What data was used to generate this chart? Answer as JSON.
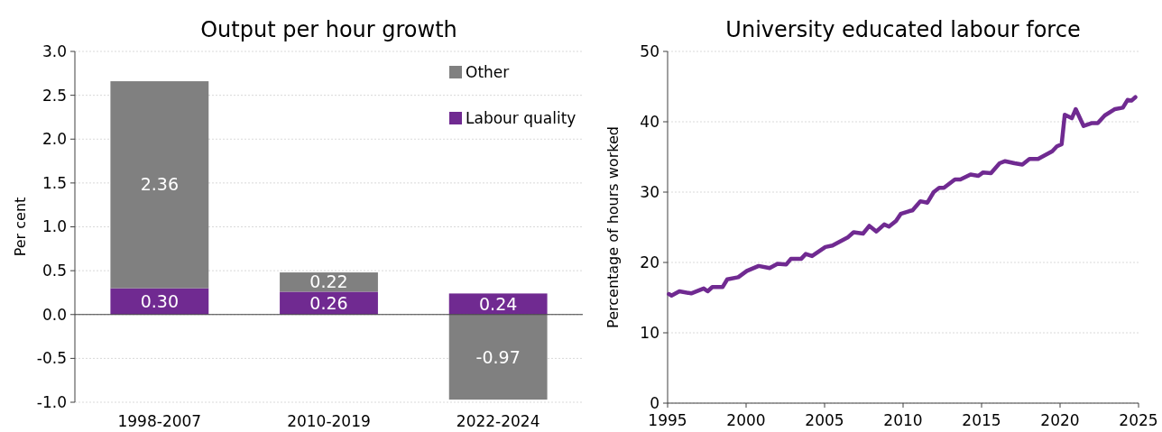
{
  "chart_data": [
    {
      "type": "bar",
      "title": "Output per hour growth",
      "ylabel": "Per cent",
      "categories": [
        "1998-2007",
        "2010-2019",
        "2022-2024"
      ],
      "stacked": true,
      "legend": "top right",
      "grid": "y",
      "ylim": [
        -1,
        3
      ],
      "yticks": [
        {
          "value": -1,
          "label": "-1.0"
        },
        {
          "value": -0.5,
          "label": "-0.5"
        },
        {
          "value": 0,
          "label": "0.0"
        },
        {
          "value": 0.5,
          "label": "0.5"
        },
        {
          "value": 1,
          "label": "1.0"
        },
        {
          "value": 1.5,
          "label": "1.5"
        },
        {
          "value": 2,
          "label": "2.0"
        },
        {
          "value": 2.5,
          "label": "2.5"
        },
        {
          "value": 3,
          "label": "3.0"
        }
      ],
      "series": [
        {
          "name": "Labour quality",
          "color": "#702a91",
          "values": [
            0.3,
            0.26,
            0.24
          ],
          "value_labels": [
            "0.30",
            "0.26",
            "0.24"
          ]
        },
        {
          "name": "Other",
          "color": "#808080",
          "values": [
            2.36,
            0.22,
            -0.97
          ],
          "value_labels": [
            "2.36",
            "0.22",
            "-0.97"
          ]
        }
      ]
    },
    {
      "type": "line",
      "title": "University educated labour force",
      "ylabel": "Percentage of hours worked",
      "grid": "y",
      "legend": false,
      "xlim": [
        1995,
        2025
      ],
      "xticks": [
        1995,
        2000,
        2005,
        2010,
        2015,
        2020,
        2025
      ],
      "ylim": [
        0,
        50
      ],
      "yticks": [
        0,
        10,
        20,
        30,
        40,
        50
      ],
      "x": [
        1995.08,
        1995.25,
        1995.75,
        1996.5,
        1997.3,
        1997.55,
        1997.85,
        1998.5,
        1998.8,
        1999.5,
        2000.05,
        2000.8,
        2001.5,
        2002,
        2002.55,
        2002.85,
        2003.5,
        2003.8,
        2004.2,
        2005.05,
        2005.5,
        2006.5,
        2006.85,
        2007.45,
        2007.85,
        2008.3,
        2008.8,
        2009.1,
        2009.55,
        2009.85,
        2010.4,
        2010.6,
        2011.1,
        2011.55,
        2011.95,
        2012.3,
        2012.6,
        2013.3,
        2013.65,
        2014.3,
        2014.8,
        2015.1,
        2015.6,
        2016.15,
        2016.5,
        2017.1,
        2017.6,
        2018.05,
        2018.6,
        2019.5,
        2019.8,
        2020.1,
        2020.3,
        2020.75,
        2021,
        2021.5,
        2022,
        2022.4,
        2022.85,
        2023.5,
        2024,
        2024.3,
        2024.55,
        2024.8
      ],
      "series": [
        {
          "color": "#702a91",
          "values": [
            15.5,
            15.3,
            15.9,
            15.6,
            16.3,
            15.9,
            16.5,
            16.5,
            17.6,
            17.9,
            18.8,
            19.5,
            19.2,
            19.8,
            19.7,
            20.5,
            20.5,
            21.2,
            20.9,
            22.2,
            22.4,
            23.6,
            24.3,
            24.1,
            25.2,
            24.4,
            25.4,
            25.1,
            25.9,
            26.9,
            27.3,
            27.4,
            28.7,
            28.5,
            30.0,
            30.6,
            30.6,
            31.8,
            31.8,
            32.5,
            32.3,
            32.8,
            32.7,
            34.1,
            34.4,
            34.1,
            33.9,
            34.7,
            34.7,
            35.8,
            36.5,
            36.8,
            41.0,
            40.5,
            41.8,
            39.4,
            39.8,
            39.8,
            40.9,
            41.8,
            42.0,
            43.1,
            43.0,
            43.5
          ]
        }
      ]
    }
  ]
}
